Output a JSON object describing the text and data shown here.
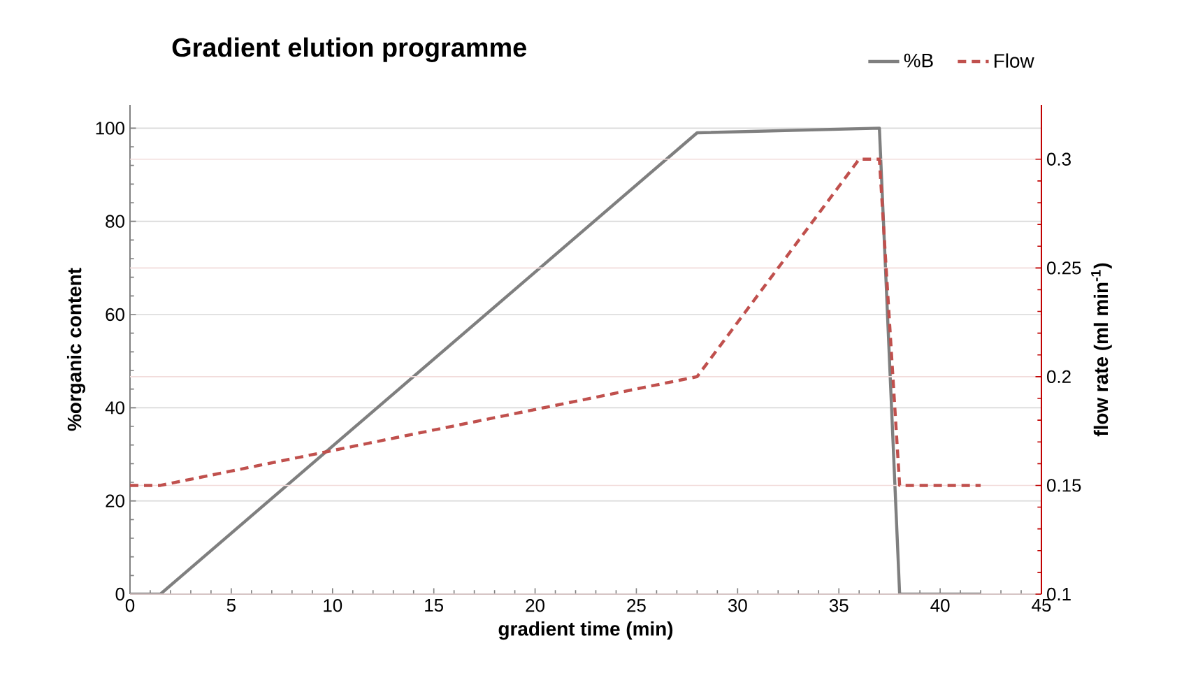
{
  "chart_data": {
    "type": "line",
    "title": "Gradient elution programme",
    "xlabel": "gradient time (min)",
    "ylabel": "%organic content",
    "y2label": "flow rate (ml min$^{-1}$)",
    "xlim": [
      0,
      45
    ],
    "xticks": [
      0,
      5,
      10,
      15,
      20,
      25,
      30,
      35,
      40,
      45
    ],
    "ylim": [
      0,
      105
    ],
    "yticks": [
      0,
      20,
      40,
      60,
      80,
      100
    ],
    "y2lim": [
      0.1,
      0.325
    ],
    "y2ticks": [
      0.1,
      0.15,
      0.2,
      0.25,
      0.3
    ],
    "grid": "y",
    "legend": "top right",
    "series": [
      {
        "name": "%B",
        "color": "#7f7f7f",
        "line_style": "solid",
        "x": [
          0,
          1.5,
          28,
          37,
          38,
          42
        ],
        "values": [
          0,
          0,
          99,
          100,
          0,
          0
        ]
      },
      {
        "name": "Flow",
        "color": "#c0504d",
        "line_style": "dashed",
        "axis": "y2",
        "x": [
          0,
          1.5,
          28,
          36,
          37,
          38,
          42
        ],
        "values": [
          0.15,
          0.15,
          0.2,
          0.3,
          0.3,
          0.15,
          0.15
        ]
      }
    ]
  }
}
